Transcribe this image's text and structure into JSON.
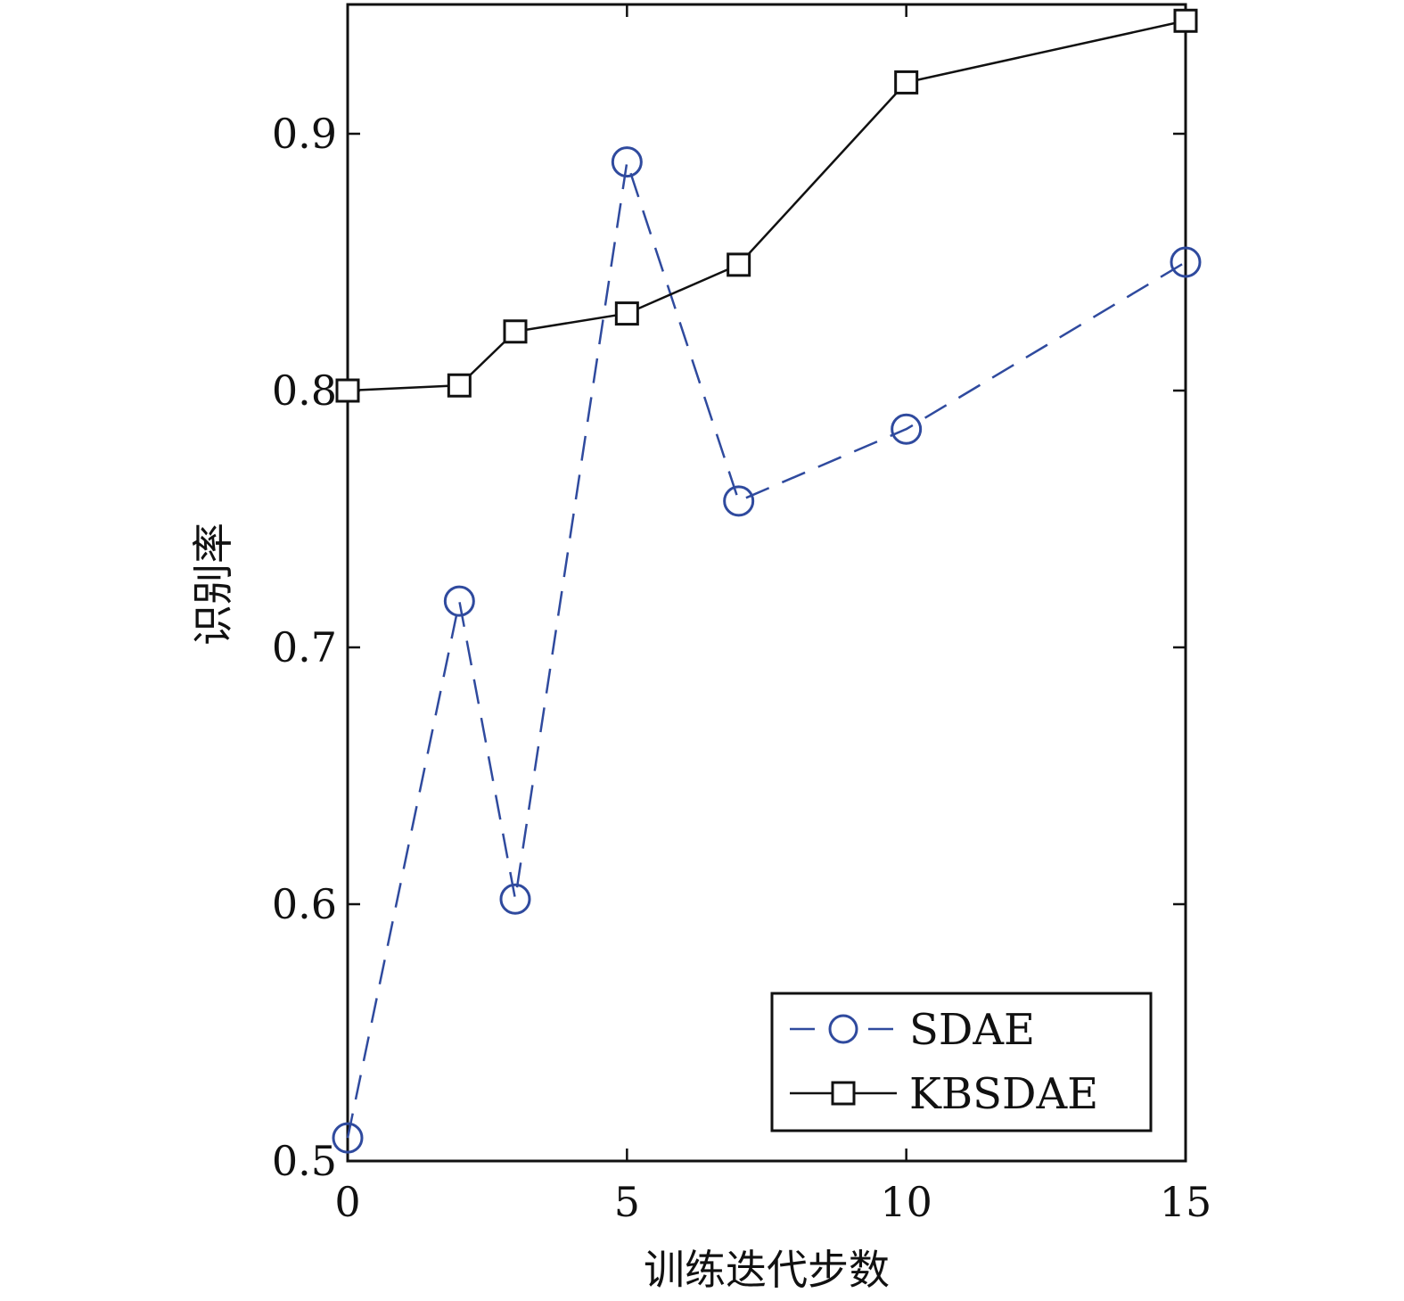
{
  "chart_data": {
    "type": "line",
    "xlabel": "训练迭代步数",
    "ylabel": "识别率",
    "xlim": [
      0,
      15
    ],
    "ylim": [
      0.5,
      0.95
    ],
    "xticks": [
      0,
      5,
      10,
      15
    ],
    "xtick_labels": [
      "0",
      "5",
      "10",
      "15"
    ],
    "yticks": [
      0.5,
      0.6,
      0.7,
      0.8,
      0.9
    ],
    "ytick_labels": [
      "0.5",
      "0.6",
      "0.7",
      "0.8",
      "0.9"
    ],
    "grid": false,
    "legend_position": "bottom-right",
    "series": [
      {
        "name": "SDAE",
        "color": "#2f4a9e",
        "line_style": "dashed",
        "marker": "circle",
        "x": [
          0,
          2,
          3,
          5,
          7,
          10,
          15
        ],
        "y": [
          0.509,
          0.718,
          0.602,
          0.889,
          0.757,
          0.785,
          0.85
        ]
      },
      {
        "name": "KBSDAE",
        "color": "#111111",
        "line_style": "solid",
        "marker": "square",
        "x": [
          0,
          2,
          3,
          5,
          7,
          10,
          15
        ],
        "y": [
          0.8,
          0.802,
          0.823,
          0.83,
          0.849,
          0.92,
          0.944
        ]
      }
    ]
  }
}
